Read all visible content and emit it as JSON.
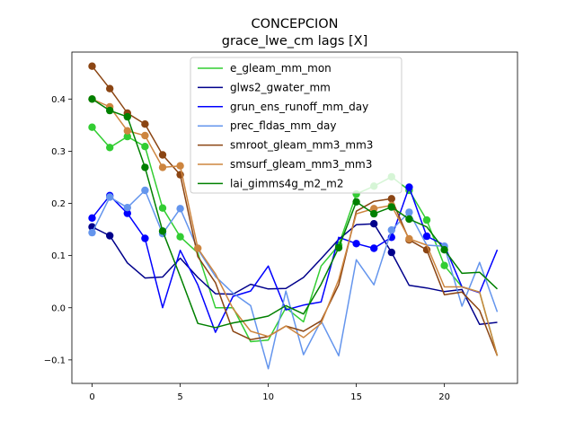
{
  "chart_data": {
    "type": "line",
    "title": "CONCEPCION",
    "subtitle": "grace_lwe_cm lags [X]",
    "xlabel": "",
    "ylabel": "",
    "xlim": [
      -1.15,
      24.15
    ],
    "ylim": [
      -0.145,
      0.49
    ],
    "xticks": [
      0,
      5,
      10,
      15,
      20
    ],
    "yticks": [
      -0.1,
      0.0,
      0.1,
      0.2,
      0.3,
      0.4
    ],
    "ytick_labels": [
      "−0.1",
      "0.0",
      "0.1",
      "0.2",
      "0.3",
      "0.4"
    ],
    "legend_position": "top-center",
    "x": [
      0,
      1,
      2,
      3,
      4,
      5,
      6,
      7,
      8,
      9,
      10,
      11,
      12,
      13,
      14,
      15,
      16,
      17,
      18,
      19,
      20,
      21,
      22,
      23
    ],
    "series": [
      {
        "name": "e_gleam_mm_mon",
        "color": "#32cd32",
        "values": [
          0.346,
          0.307,
          0.328,
          0.309,
          0.191,
          0.136,
          0.105,
          0.0,
          0.0,
          -0.065,
          -0.062,
          -0.0,
          -0.027,
          0.08,
          0.12,
          0.218,
          0.233,
          0.251,
          0.225,
          0.168,
          0.081,
          0.04,
          0.03,
          -0.092
        ],
        "markers": [
          0,
          1,
          2,
          3,
          4,
          5,
          14,
          15,
          16,
          17,
          18,
          19,
          20
        ]
      },
      {
        "name": "glws2_gwater_mm",
        "color": "#00008b",
        "values": [
          0.155,
          0.138,
          0.086,
          0.057,
          0.059,
          0.095,
          0.058,
          0.027,
          0.026,
          0.045,
          0.036,
          0.037,
          0.058,
          0.094,
          0.131,
          0.159,
          0.161,
          0.106,
          0.043,
          0.038,
          0.031,
          0.035,
          -0.032,
          -0.028
        ],
        "markers": [
          0,
          1,
          16,
          17
        ]
      },
      {
        "name": "grun_ens_runoff_mm_day",
        "color": "#0000ff",
        "values": [
          0.172,
          0.215,
          0.181,
          0.133,
          -0.0,
          0.11,
          0.044,
          -0.047,
          0.022,
          0.032,
          0.08,
          -0.004,
          0.005,
          0.011,
          0.135,
          0.123,
          0.114,
          0.135,
          0.231,
          0.137,
          0.12,
          0.04,
          0.029,
          0.111
        ],
        "markers": [
          0,
          1,
          2,
          3,
          15,
          16,
          17,
          18,
          19
        ]
      },
      {
        "name": "prec_fldas_mm_day",
        "color": "#6495ed",
        "values": [
          0.144,
          0.212,
          0.192,
          0.225,
          0.142,
          0.19,
          0.112,
          0.06,
          0.028,
          0.004,
          -0.117,
          0.032,
          -0.09,
          -0.025,
          -0.092,
          0.092,
          0.044,
          0.149,
          0.183,
          0.12,
          0.118,
          0.003,
          0.087,
          -0.008
        ],
        "markers": [
          0,
          1,
          2,
          3,
          4,
          5,
          17,
          18,
          20
        ]
      },
      {
        "name": "smroot_gleam_mm3_mm3",
        "color": "#8b4513",
        "values": [
          0.463,
          0.42,
          0.373,
          0.352,
          0.293,
          0.255,
          0.098,
          0.048,
          -0.045,
          -0.061,
          -0.055,
          -0.035,
          -0.045,
          -0.025,
          0.044,
          0.185,
          0.204,
          0.209,
          0.13,
          0.111,
          0.025,
          0.03,
          -0.005,
          -0.092
        ],
        "markers": [
          0,
          1,
          2,
          3,
          4,
          5,
          17,
          18,
          19
        ]
      },
      {
        "name": "smsurf_gleam_mm3_mm3",
        "color": "#cd853f",
        "values": [
          0.4,
          0.385,
          0.339,
          0.33,
          0.269,
          0.272,
          0.114,
          0.065,
          -0.002,
          -0.045,
          -0.055,
          -0.035,
          -0.057,
          -0.03,
          0.054,
          0.18,
          0.19,
          0.196,
          0.132,
          0.12,
          0.04,
          0.04,
          0.03,
          -0.092
        ],
        "markers": [
          0,
          1,
          2,
          3,
          4,
          5,
          6,
          16,
          17,
          18
        ]
      },
      {
        "name": "lai_gimms4g_m2_m2",
        "color": "#008000",
        "values": [
          0.4,
          0.378,
          0.366,
          0.269,
          0.147,
          0.06,
          -0.03,
          -0.038,
          -0.029,
          -0.023,
          -0.016,
          0.004,
          -0.012,
          0.045,
          0.115,
          0.203,
          0.18,
          0.193,
          0.17,
          0.155,
          0.111,
          0.066,
          0.068,
          0.036
        ],
        "markers": [
          0,
          1,
          2,
          3,
          4,
          14,
          15,
          16,
          17,
          18,
          20
        ]
      }
    ]
  }
}
